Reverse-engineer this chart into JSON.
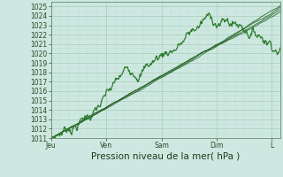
{
  "xlabel": "Pression niveau de la mer( hPa )",
  "ylim": [
    1011,
    1025.5
  ],
  "xlim": [
    0,
    4.15
  ],
  "yticks": [
    1011,
    1012,
    1013,
    1014,
    1015,
    1016,
    1017,
    1018,
    1019,
    1020,
    1021,
    1022,
    1023,
    1024,
    1025
  ],
  "xtick_labels": [
    "Jeu",
    "Ven",
    "Sam",
    "Dim",
    "L"
  ],
  "xtick_positions": [
    0,
    1,
    2,
    3,
    4
  ],
  "background_color": "#cde8e0",
  "grid_major_color": "#aaccbb",
  "grid_minor_color": "#c0ddd5",
  "line_color_dark": "#1e5c1e",
  "line_color_mid": "#2e7d2e",
  "tick_fontsize": 5.5,
  "xlabel_fontsize": 7.5
}
